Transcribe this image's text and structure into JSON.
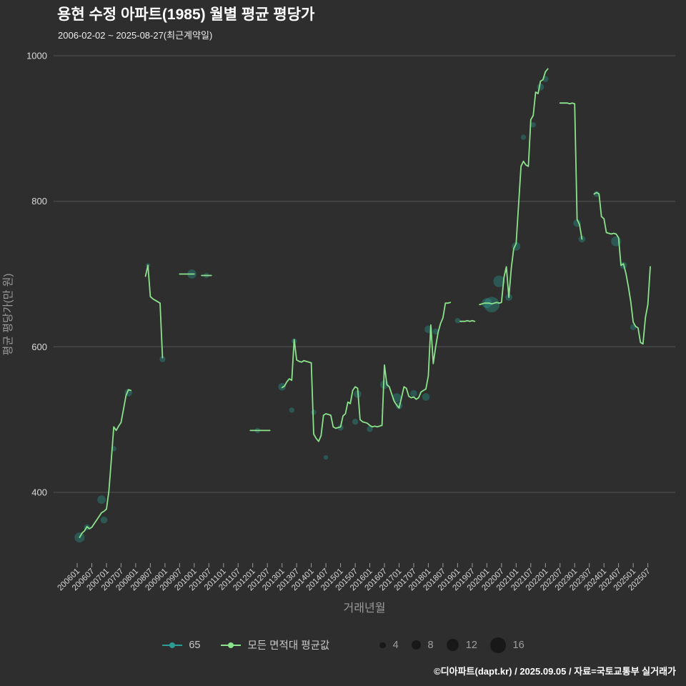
{
  "footer": {
    "credit": "©디아파트(dapt.kr) / 2025.09.05 / 자료=국토교통부 실거래가"
  },
  "chart_data": {
    "type": "line",
    "title": "용현 수정 아파트(1985) 월별 평균 평당가",
    "subtitle": "2006-02-02 ~ 2025-08-27(최근계약일)",
    "xlabel": "거래년월",
    "ylabel": "평균 평당가(만 원)",
    "ylim": [
      300,
      1010
    ],
    "y_ticks": [
      400,
      600,
      800,
      1000
    ],
    "x_ticks": [
      "200601",
      "200607",
      "200701",
      "200707",
      "200801",
      "200807",
      "200901",
      "200907",
      "201001",
      "201007",
      "201101",
      "201107",
      "201201",
      "201207",
      "201301",
      "201307",
      "201401",
      "201407",
      "201501",
      "201507",
      "201601",
      "201607",
      "201701",
      "201707",
      "201801",
      "201807",
      "201901",
      "201907",
      "202001",
      "202007",
      "202101",
      "202107",
      "202201",
      "202207",
      "202301",
      "202307",
      "202401",
      "202407",
      "202501",
      "202507"
    ],
    "grid": "horizontal",
    "legend_position": "bottom",
    "background": "#2e2e2e",
    "series": [
      {
        "name": "모든 면적대 평균값",
        "type": "line",
        "color": "#8be38b",
        "segments": [
          [
            [
              "200602",
              338
            ],
            [
              "200603",
              344
            ],
            [
              "200604",
              347
            ],
            [
              "200605",
              353
            ],
            [
              "200606",
              350
            ],
            [
              "200607",
              352
            ],
            [
              "200608",
              357
            ],
            [
              "200609",
              362
            ],
            [
              "200610",
              367
            ],
            [
              "200611",
              372
            ],
            [
              "200612",
              374
            ],
            [
              "200701",
              377
            ],
            [
              "200702",
              402
            ],
            [
              "200703",
              445
            ],
            [
              "200704",
              490
            ],
            [
              "200705",
              485
            ],
            [
              "200706",
              491
            ],
            [
              "200707",
              496
            ],
            [
              "200708",
              514
            ],
            [
              "200709",
              533
            ],
            [
              "200710",
              541
            ],
            [
              "200711",
              540
            ]
          ],
          [
            [
              "200805",
              697
            ],
            [
              "200806",
              712
            ],
            [
              "200807",
              669
            ],
            [
              "200808",
              666
            ],
            [
              "200809",
              664
            ],
            [
              "200810",
              662
            ],
            [
              "200811",
              660
            ],
            [
              "200812",
              585
            ]
          ],
          [
            [
              "200907",
              700
            ],
            [
              "200908",
              700
            ],
            [
              "200909",
              700
            ],
            [
              "200910",
              700
            ],
            [
              "200911",
              700
            ],
            [
              "200912",
              700
            ],
            [
              "201001",
              700
            ]
          ],
          [
            [
              "201004",
              698
            ],
            [
              "201005",
              698
            ],
            [
              "201006",
              698
            ],
            [
              "201007",
              698
            ],
            [
              "201008",
              698
            ]
          ],
          [
            [
              "201112",
              485
            ],
            [
              "201201",
              485
            ],
            [
              "201202",
              485
            ],
            [
              "201203",
              485
            ],
            [
              "201204",
              485
            ],
            [
              "201205",
              485
            ],
            [
              "201206",
              485
            ],
            [
              "201207",
              485
            ],
            [
              "201208",
              485
            ]
          ],
          [
            [
              "201301",
              544
            ],
            [
              "201302",
              546
            ],
            [
              "201303",
              552
            ],
            [
              "201304",
              556
            ],
            [
              "201305",
              554
            ],
            [
              "201306",
              610
            ],
            [
              "201307",
              582
            ],
            [
              "201308",
              580
            ],
            [
              "201309",
              579
            ],
            [
              "201310",
              581
            ],
            [
              "201311",
              580
            ],
            [
              "201312",
              579
            ],
            [
              "201401",
              578
            ],
            [
              "201402",
              480
            ],
            [
              "201403",
              474
            ],
            [
              "201404",
              470
            ],
            [
              "201405",
              478
            ],
            [
              "201406",
              506
            ],
            [
              "201407",
              508
            ],
            [
              "201408",
              507
            ],
            [
              "201409",
              506
            ],
            [
              "201410",
              490
            ],
            [
              "201411",
              488
            ],
            [
              "201412",
              489
            ],
            [
              "201501",
              490
            ],
            [
              "201502",
              505
            ],
            [
              "201503",
              508
            ],
            [
              "201504",
              524
            ],
            [
              "201505",
              522
            ],
            [
              "201506",
              540
            ],
            [
              "201507",
              545
            ],
            [
              "201508",
              543
            ],
            [
              "201509",
              500
            ],
            [
              "201510",
              497
            ],
            [
              "201511",
              496
            ],
            [
              "201512",
              495
            ],
            [
              "201601",
              492
            ],
            [
              "201602",
              490
            ],
            [
              "201603",
              491
            ],
            [
              "201604",
              490
            ],
            [
              "201605",
              491
            ],
            [
              "201606",
              492
            ],
            [
              "201607",
              575
            ],
            [
              "201608",
              548
            ],
            [
              "201609",
              545
            ],
            [
              "201610",
              535
            ],
            [
              "201611",
              525
            ],
            [
              "201612",
              520
            ],
            [
              "201701",
              516
            ],
            [
              "201702",
              530
            ],
            [
              "201703",
              545
            ],
            [
              "201704",
              543
            ],
            [
              "201705",
              532
            ],
            [
              "201706",
              530
            ],
            [
              "201707",
              531
            ],
            [
              "201708",
              528
            ],
            [
              "201709",
              530
            ],
            [
              "201710",
              538
            ],
            [
              "201711",
              540
            ],
            [
              "201712",
              542
            ],
            [
              "201801",
              560
            ],
            [
              "201802",
              630
            ],
            [
              "201803",
              577
            ],
            [
              "201804",
              600
            ],
            [
              "201805",
              620
            ],
            [
              "201806",
              632
            ],
            [
              "201807",
              640
            ],
            [
              "201808",
              660
            ],
            [
              "201809",
              660
            ],
            [
              "201810",
              661
            ]
          ],
          [
            [
              "201902",
              635
            ],
            [
              "201903",
              635
            ],
            [
              "201904",
              635
            ],
            [
              "201905",
              636
            ],
            [
              "201906",
              635
            ],
            [
              "201907",
              636
            ],
            [
              "201908",
              635
            ]
          ],
          [
            [
              "201910",
              658
            ],
            [
              "201911",
              659
            ],
            [
              "201912",
              660
            ],
            [
              "202001",
              660
            ],
            [
              "202002",
              660
            ],
            [
              "202003",
              659
            ],
            [
              "202004",
              660
            ],
            [
              "202005",
              661
            ],
            [
              "202006",
              660
            ],
            [
              "202007",
              661
            ],
            [
              "202008",
              695
            ],
            [
              "202009",
              710
            ],
            [
              "202010",
              668
            ],
            [
              "202011",
              708
            ],
            [
              "202012",
              735
            ],
            [
              "202101",
              742
            ],
            [
              "202102",
              795
            ],
            [
              "202103",
              848
            ],
            [
              "202104",
              855
            ],
            [
              "202105",
              850
            ],
            [
              "202106",
              848
            ],
            [
              "202107",
              912
            ],
            [
              "202108",
              918
            ],
            [
              "202109",
              950
            ],
            [
              "202110",
              948
            ],
            [
              "202111",
              965
            ],
            [
              "202112",
              967
            ],
            [
              "202201",
              978
            ],
            [
              "202202",
              982
            ]
          ],
          [
            [
              "202207",
              935
            ],
            [
              "202208",
              935
            ],
            [
              "202209",
              935
            ],
            [
              "202210",
              935
            ],
            [
              "202211",
              934
            ],
            [
              "202212",
              935
            ],
            [
              "202301",
              934
            ],
            [
              "202302",
              775
            ],
            [
              "202303",
              768
            ],
            [
              "202304",
              748
            ]
          ],
          [
            [
              "202309",
              810
            ],
            [
              "202310",
              812
            ],
            [
              "202311",
              810
            ],
            [
              "202312",
              779
            ],
            [
              "202401",
              776
            ],
            [
              "202402",
              757
            ],
            [
              "202403",
              756
            ],
            [
              "202404",
              755
            ],
            [
              "202405",
              756
            ],
            [
              "202406",
              755
            ],
            [
              "202407",
              750
            ],
            [
              "202408",
              712
            ],
            [
              "202409",
              714
            ],
            [
              "202410",
              701
            ],
            [
              "202411",
              683
            ],
            [
              "202412",
              662
            ],
            [
              "202501",
              634
            ],
            [
              "202502",
              628
            ],
            [
              "202503",
              626
            ],
            [
              "202504",
              606
            ],
            [
              "202505",
              604
            ],
            [
              "202506",
              640
            ],
            [
              "202507",
              658
            ],
            [
              "202508",
              710
            ]
          ]
        ]
      },
      {
        "name": "65",
        "type": "bubble",
        "color": "#2a9d94",
        "points": [
          [
            "200602",
            338,
            9
          ],
          [
            "200605",
            352,
            4
          ],
          [
            "200611",
            390,
            7
          ],
          [
            "200612",
            362,
            5
          ],
          [
            "200704",
            460,
            3
          ],
          [
            "200710",
            537,
            6
          ],
          [
            "200806",
            712,
            2
          ],
          [
            "200812",
            583,
            4
          ],
          [
            "200912",
            700,
            8
          ],
          [
            "201006",
            698,
            3
          ],
          [
            "201203",
            485,
            3
          ],
          [
            "201301",
            545,
            6
          ],
          [
            "201305",
            513,
            3
          ],
          [
            "201306",
            608,
            3
          ],
          [
            "201402",
            510,
            3
          ],
          [
            "201407",
            448,
            2
          ],
          [
            "201501",
            489,
            4
          ],
          [
            "201507",
            497,
            4
          ],
          [
            "201508",
            535,
            6
          ],
          [
            "201601",
            487,
            4
          ],
          [
            "201607",
            548,
            7
          ],
          [
            "201612",
            530,
            8
          ],
          [
            "201701",
            519,
            5
          ],
          [
            "201707",
            536,
            5
          ],
          [
            "201712",
            531,
            6
          ],
          [
            "201801",
            624,
            6
          ],
          [
            "201804",
            621,
            4
          ],
          [
            "201901",
            636,
            3
          ],
          [
            "202001",
            660,
            9
          ],
          [
            "202003",
            658,
            16
          ],
          [
            "202006",
            690,
            11
          ],
          [
            "202010",
            668,
            5
          ],
          [
            "202101",
            738,
            7
          ],
          [
            "202104",
            888,
            3
          ],
          [
            "202108",
            905,
            3
          ],
          [
            "202111",
            957,
            5
          ],
          [
            "202201",
            968,
            4
          ],
          [
            "202302",
            770,
            6
          ],
          [
            "202304",
            748,
            5
          ],
          [
            "202310",
            810,
            4
          ],
          [
            "202406",
            745,
            9
          ],
          [
            "202409",
            712,
            5
          ],
          [
            "202501",
            627,
            4
          ]
        ]
      }
    ],
    "size_legend": [
      4,
      8,
      12,
      16
    ]
  }
}
